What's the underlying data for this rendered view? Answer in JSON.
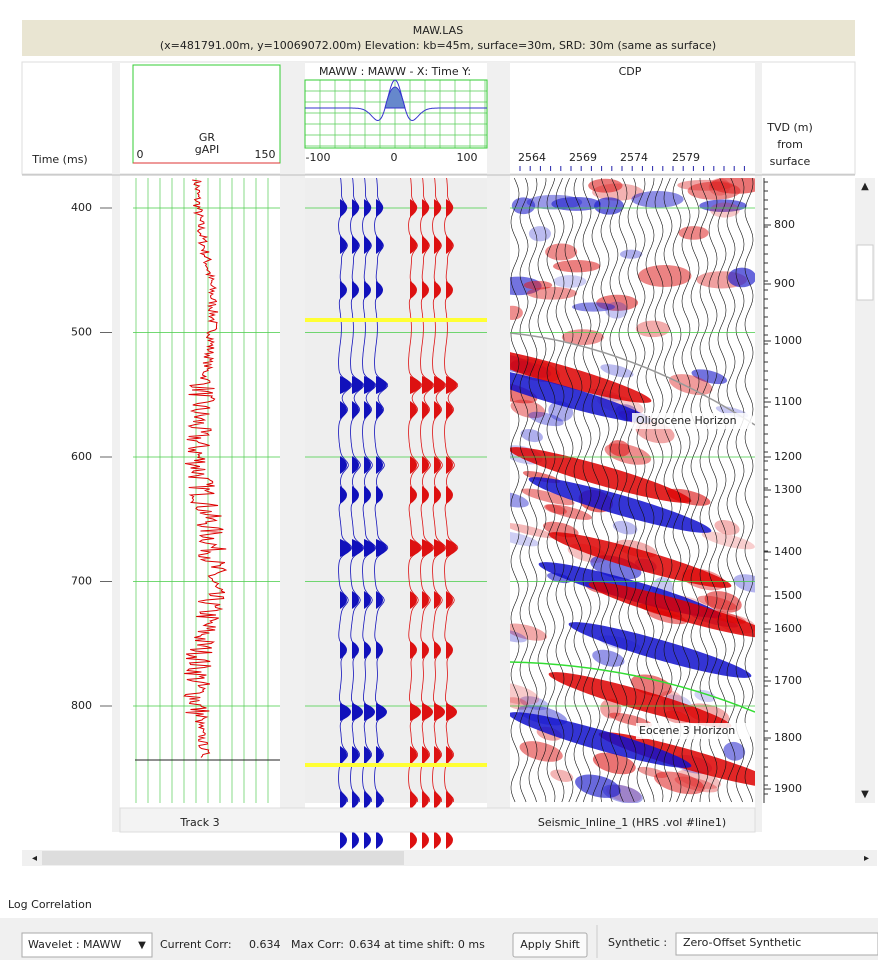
{
  "header": {
    "title": "MAW.LAS",
    "subtitle": "(x=481791.00m, y=10069072.00m) Elevation: kb=45m, surface=30m, SRD: 30m (same as surface)"
  },
  "time_track": {
    "label": "Time (ms)",
    "ticks": [
      400,
      500,
      600,
      700,
      800
    ]
  },
  "gr_track": {
    "name": "GR",
    "unit": "gAPI",
    "min": 0,
    "max": 150,
    "footer": "Track 3"
  },
  "wavelet_track": {
    "title": "MAWW : MAWW - X: Time Y:",
    "ticks": [
      -100,
      0,
      100
    ]
  },
  "seismic_track": {
    "title": "CDP",
    "ticks": [
      2564,
      2569,
      2574,
      2579
    ],
    "footer": "Seismic_Inline_1 (HRS .vol #line1)",
    "horizons": [
      "Oligocene Horizon",
      "Eocene 3 Horizon"
    ]
  },
  "tvd_track": {
    "label": [
      "TVD (m)",
      "from",
      "surface"
    ],
    "ticks": [
      800,
      900,
      1000,
      1100,
      1200,
      1300,
      1400,
      1500,
      1600,
      1700,
      1800,
      1900
    ]
  },
  "panel": {
    "title": "Log Correlation",
    "wavelet_select": "Wavelet : MAWW",
    "current_corr_label": "Current Corr:",
    "current_corr": 0.634,
    "max_corr_label": "Max Corr:",
    "max_corr": 0.634,
    "shift_label": "at time shift: 0 ms",
    "apply": "Apply Shift",
    "synthetic_label": "Synthetic :",
    "synthetic": "Zero-Offset Synthetic"
  }
}
